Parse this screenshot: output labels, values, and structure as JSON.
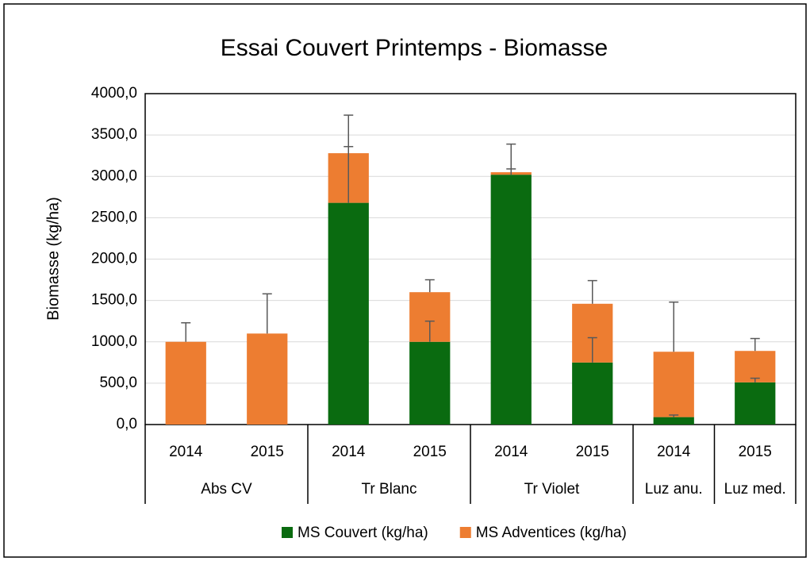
{
  "chart_data": {
    "type": "bar",
    "stacked": true,
    "title": "Essai Couvert Printemps - Biomasse",
    "y_label": "Biomasse (kg/ha)",
    "categories": [
      "2014",
      "2015",
      "2014",
      "2015",
      "2014",
      "2015",
      "2014",
      "2015"
    ],
    "category_groups": [
      {
        "name": "Abs CV",
        "categories": [
          0,
          1
        ]
      },
      {
        "name": "Tr Blanc",
        "categories": [
          2,
          3
        ]
      },
      {
        "name": "Tr Violet",
        "categories": [
          4,
          5
        ]
      },
      {
        "name": "Luz anu.",
        "categories": [
          6
        ]
      },
      {
        "name": "Luz med.",
        "categories": [
          7
        ]
      }
    ],
    "series": [
      {
        "name": "MS Couvert (kg/ha)",
        "color": "#0a6b10",
        "values": [
          0,
          0,
          2680,
          1000,
          3020,
          750,
          90,
          510
        ],
        "errors": [
          null,
          null,
          680,
          250,
          70,
          300,
          25,
          50
        ]
      },
      {
        "name": "MS Adventices (kg/ha)",
        "color": "#ed7d31",
        "values": [
          1000,
          1100,
          600,
          600,
          30,
          710,
          790,
          380
        ],
        "errors": [
          230,
          480,
          460,
          150,
          340,
          280,
          600,
          150
        ]
      }
    ],
    "ylim": [
      0,
      4000
    ],
    "yticks": [
      {
        "value": 0,
        "label": "0,0"
      },
      {
        "value": 500,
        "label": "500,0"
      },
      {
        "value": 1000,
        "label": "1000,0"
      },
      {
        "value": 1500,
        "label": "1500,0"
      },
      {
        "value": 2000,
        "label": "2000,0"
      },
      {
        "value": 2500,
        "label": "2500,0"
      },
      {
        "value": 3000,
        "label": "3000,0"
      },
      {
        "value": 3500,
        "label": "3500,0"
      },
      {
        "value": 4000,
        "label": "4000,0"
      }
    ],
    "grid": true,
    "legend": "bottom"
  }
}
